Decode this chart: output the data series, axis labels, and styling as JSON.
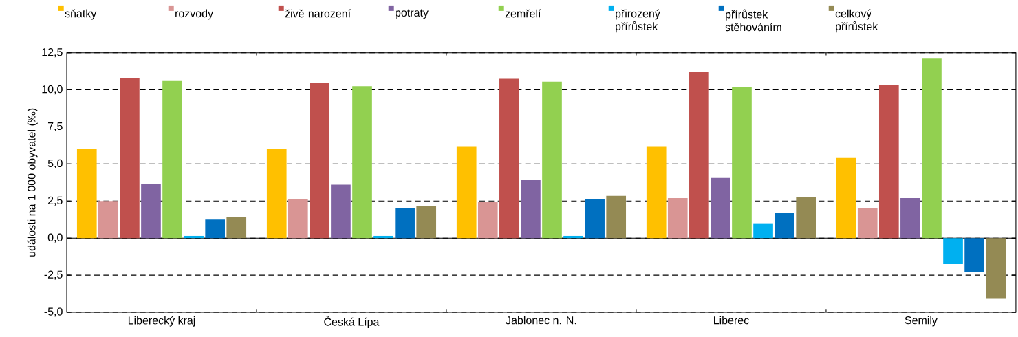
{
  "chart_data": {
    "type": "bar",
    "ylabel": "události na 1 000 obyvatel (‰)",
    "categories": [
      "Liberecký kraj",
      "Česká Lípa",
      "Jablonec n. N.",
      "Liberec",
      "Semily"
    ],
    "series": [
      {
        "name": "sňatky",
        "color": "#ffc000",
        "values": [
          6.0,
          6.0,
          6.15,
          6.15,
          5.4
        ]
      },
      {
        "name": "rozvody",
        "color": "#d99594",
        "values": [
          2.5,
          2.65,
          2.45,
          2.7,
          2.0
        ]
      },
      {
        "name": "živě narození",
        "color": "#c0504d",
        "values": [
          10.8,
          10.45,
          10.75,
          11.2,
          10.35
        ]
      },
      {
        "name": "potraty",
        "color": "#8064a2",
        "values": [
          3.65,
          3.6,
          3.9,
          4.05,
          2.7
        ]
      },
      {
        "name": "zemřelí",
        "color": "#92d050",
        "values": [
          10.6,
          10.25,
          10.55,
          10.2,
          12.1
        ]
      },
      {
        "name": "přirozený přírůstek",
        "color": "#00b0f0",
        "values": [
          0.15,
          0.15,
          0.15,
          1.0,
          -1.75
        ]
      },
      {
        "name": "přírůstek stěhováním",
        "color": "#0070c0",
        "values": [
          1.25,
          2.0,
          2.65,
          1.7,
          -2.3
        ]
      },
      {
        "name": "celkový přírůstek",
        "color": "#948a54",
        "values": [
          1.45,
          2.15,
          2.85,
          2.75,
          -4.1
        ]
      }
    ],
    "ylim": [
      -5,
      12.5
    ],
    "yticks": [
      {
        "value": -5,
        "label": "-5,0"
      },
      {
        "value": -2.5,
        "label": "-2,5"
      },
      {
        "value": 0,
        "label": "0,0"
      },
      {
        "value": 2.5,
        "label": "2,5"
      },
      {
        "value": 5,
        "label": "5,0"
      },
      {
        "value": 7.5,
        "label": "7,5"
      },
      {
        "value": 10,
        "label": "10,0"
      },
      {
        "value": 12.5,
        "label": "12,5"
      }
    ],
    "grid": "y",
    "legend": "top"
  }
}
